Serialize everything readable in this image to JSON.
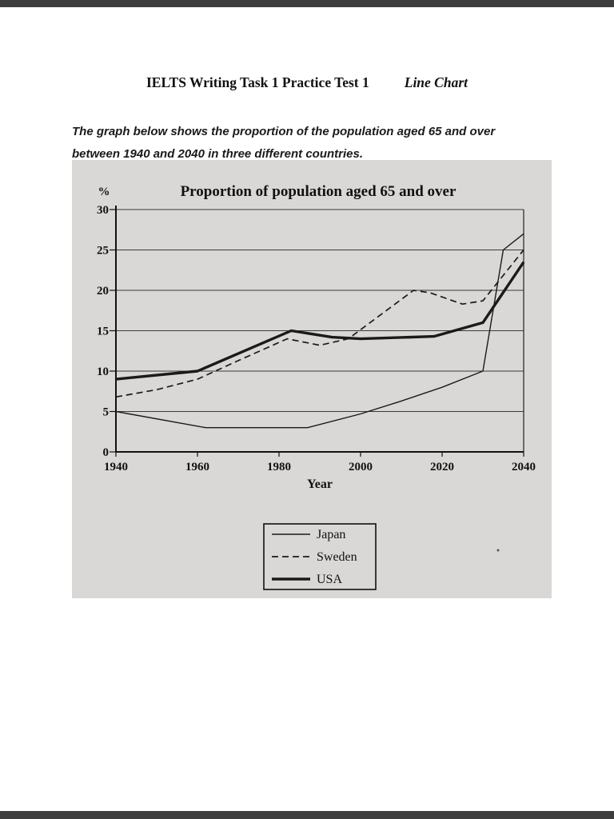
{
  "page": {
    "title": "IELTS Writing Task 1 Practice Test 1",
    "title_suffix": "Line Chart",
    "description": "The graph below shows the proportion of the population aged 65 and over between 1940 and 2040 in three different countries."
  },
  "chart_data": {
    "type": "line",
    "title": "Proportion of population aged 65 and over",
    "ylabel": "%",
    "xlabel": "Year",
    "xlim": [
      1940,
      2040
    ],
    "ylim": [
      0,
      30
    ],
    "yticks": [
      0,
      5,
      10,
      15,
      20,
      25,
      30
    ],
    "xticks": [
      1940,
      1960,
      1980,
      2000,
      2020,
      2040
    ],
    "grid": true,
    "legend_position": "below-center",
    "series": [
      {
        "name": "Japan",
        "style": "thin-solid",
        "points": [
          [
            1940,
            5
          ],
          [
            1962,
            3
          ],
          [
            1987,
            3
          ],
          [
            2000,
            4.7
          ],
          [
            2010,
            6.3
          ],
          [
            2020,
            8
          ],
          [
            2030,
            10
          ],
          [
            2035,
            25
          ],
          [
            2040,
            27
          ]
        ]
      },
      {
        "name": "Sweden",
        "style": "dashed",
        "points": [
          [
            1940,
            6.8
          ],
          [
            1950,
            7.7
          ],
          [
            1960,
            9
          ],
          [
            1970,
            11.3
          ],
          [
            1982,
            14
          ],
          [
            1990,
            13.2
          ],
          [
            1997,
            14
          ],
          [
            2013,
            20
          ],
          [
            2017,
            19.7
          ],
          [
            2025,
            18.3
          ],
          [
            2030,
            18.7
          ],
          [
            2040,
            25
          ]
        ]
      },
      {
        "name": "USA",
        "style": "thick-solid",
        "points": [
          [
            1940,
            9
          ],
          [
            1960,
            10
          ],
          [
            1983,
            15
          ],
          [
            1993,
            14.2
          ],
          [
            2000,
            14
          ],
          [
            2018,
            14.3
          ],
          [
            2030,
            16
          ],
          [
            2040,
            23.5
          ]
        ]
      }
    ]
  },
  "colors": {
    "page_background": "#ffffff",
    "edge_strip": "#3d3d3d",
    "scan_background": "#d9d8d6",
    "line_color": "#1a1a1a"
  }
}
